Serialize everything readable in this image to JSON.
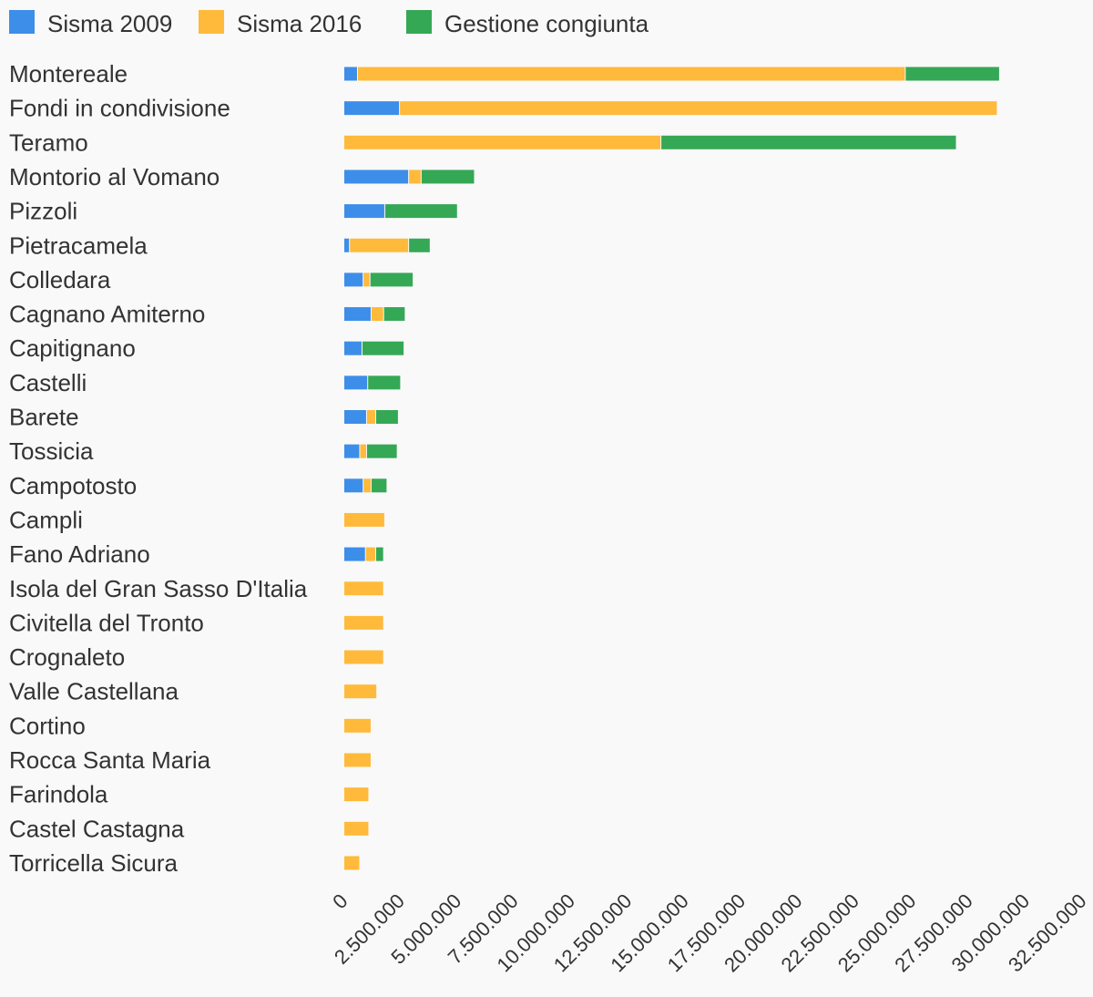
{
  "chart_data": {
    "type": "bar",
    "orientation": "horizontal",
    "stacked": true,
    "categories": [
      "Montereale",
      "Fondi in condivisione",
      "Teramo",
      "Montorio al Vomano",
      "Pizzoli",
      "Pietracamela",
      "Colledara",
      "Cagnano Amiterno",
      "Capitignano",
      "Castelli",
      "Barete",
      "Tossicia",
      "Campotosto",
      "Campli",
      "Fano Adriano",
      "Isola del Gran Sasso D'Italia",
      "Civitella del Tronto",
      "Crognaleto",
      "Valle Castellana",
      "Cortino",
      "Rocca Santa Maria",
      "Farindola",
      "Castel Castagna",
      "Torricella Sicura"
    ],
    "series": [
      {
        "name": "Sisma 2009",
        "color": "#3d8ee8",
        "values": [
          600000,
          2450000,
          0,
          2850000,
          1800000,
          250000,
          850000,
          1200000,
          800000,
          1050000,
          1000000,
          700000,
          850000,
          0,
          950000,
          0,
          0,
          0,
          0,
          0,
          0,
          0,
          0,
          0
        ]
      },
      {
        "name": "Sisma 2016",
        "color": "#ffba3b",
        "values": [
          24100000,
          26300000,
          13950000,
          550000,
          0,
          2600000,
          300000,
          550000,
          0,
          0,
          400000,
          300000,
          350000,
          1800000,
          450000,
          1750000,
          1750000,
          1750000,
          1450000,
          1200000,
          1200000,
          1100000,
          1100000,
          700000
        ]
      },
      {
        "name": "Gestione congiunta",
        "color": "#35a856",
        "values": [
          4150000,
          0,
          13000000,
          2350000,
          3200000,
          950000,
          1900000,
          950000,
          1850000,
          1450000,
          1000000,
          1350000,
          700000,
          0,
          350000,
          0,
          0,
          0,
          0,
          0,
          0,
          0,
          0,
          0
        ]
      }
    ],
    "xlim": [
      0,
      32500000
    ],
    "xticks": [
      "0",
      "2.500.000",
      "5.000.000",
      "7.500.000",
      "10.000.000",
      "12.500.000",
      "15.000.000",
      "17.500.000",
      "20.000.000",
      "22.500.000",
      "25.000.000",
      "27.500.000",
      "30.000.000",
      "32.500.000"
    ],
    "xtick_values": [
      0,
      2500000,
      5000000,
      7500000,
      10000000,
      12500000,
      15000000,
      17500000,
      20000000,
      22500000,
      25000000,
      27500000,
      30000000,
      32500000
    ],
    "legend_position": "top-left",
    "grid": false
  }
}
